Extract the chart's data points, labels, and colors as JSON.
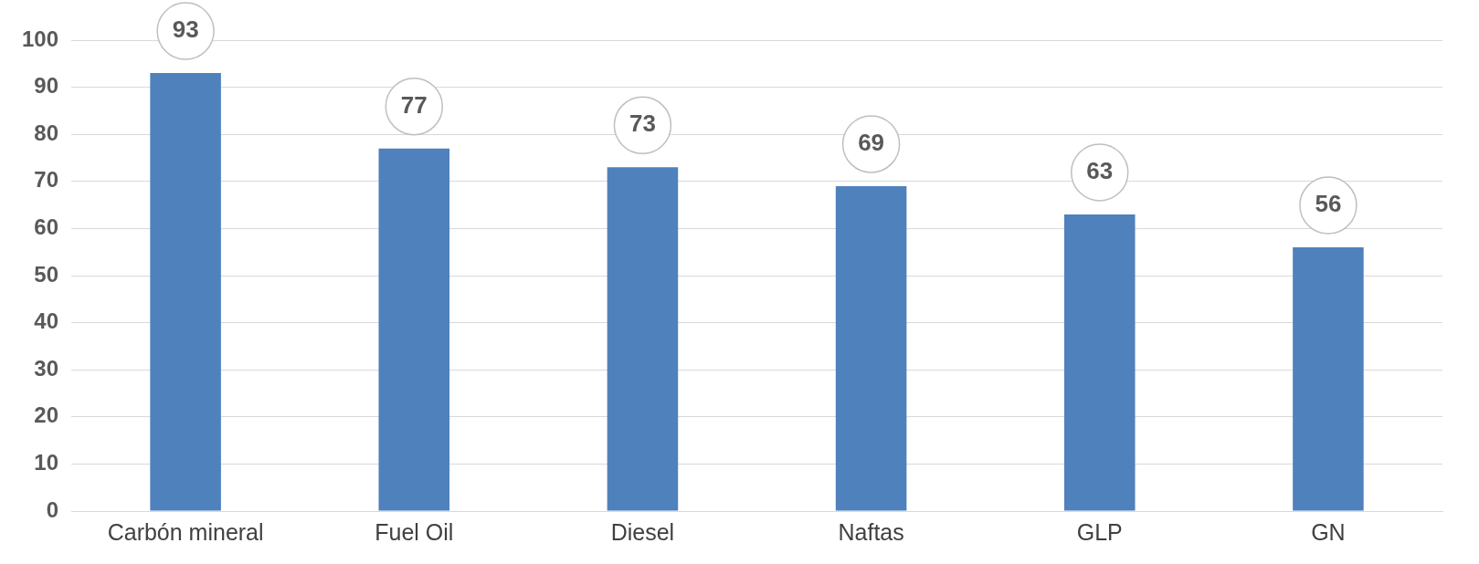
{
  "chart_data": {
    "type": "bar",
    "categories": [
      "Carbón mineral",
      "Fuel Oil",
      "Diesel",
      "Naftas",
      "GLP",
      "GN"
    ],
    "values": [
      93,
      77,
      73,
      69,
      63,
      56
    ],
    "color": "#4f81bd",
    "ylim": [
      0,
      100
    ],
    "yticks": [
      0,
      10,
      20,
      30,
      40,
      50,
      60,
      70,
      80,
      90,
      100
    ],
    "grid": "y",
    "legend": false,
    "data_labels": true
  }
}
